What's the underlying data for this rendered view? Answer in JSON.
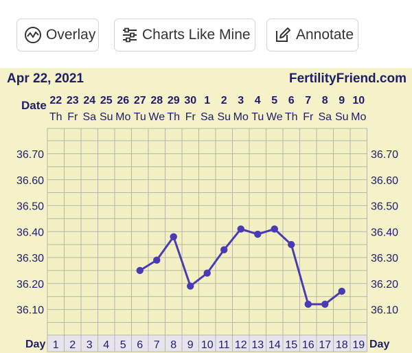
{
  "toolbar": {
    "overlay_label": "Overlay",
    "charts_like_mine_label": "Charts Like Mine",
    "annotate_label": "Annotate"
  },
  "header": {
    "date": "Apr 22, 2021",
    "site": "FertilityFriend.com"
  },
  "colors": {
    "panel": "#f5f1c8",
    "grid": "#b8b6a6",
    "line": "#4a3bb5",
    "text": "#1e1d6a"
  },
  "chart_data": {
    "type": "line",
    "row_labels": {
      "date": "Date",
      "day": "Day"
    },
    "dates": [
      "22",
      "23",
      "24",
      "25",
      "26",
      "27",
      "28",
      "29",
      "30",
      "1",
      "2",
      "3",
      "4",
      "5",
      "6",
      "7",
      "8",
      "9",
      "10"
    ],
    "weekdays": [
      "Th",
      "Fr",
      "Sa",
      "Su",
      "Mo",
      "Tu",
      "We",
      "Th",
      "Fr",
      "Sa",
      "Su",
      "Mo",
      "Tu",
      "We",
      "Th",
      "Fr",
      "Sa",
      "Su",
      "Mo"
    ],
    "cycle_days": [
      1,
      2,
      3,
      4,
      5,
      6,
      7,
      8,
      9,
      10,
      11,
      12,
      13,
      14,
      15,
      16,
      17,
      18,
      19
    ],
    "y_ticks": [
      "36.70",
      "36.60",
      "36.50",
      "36.40",
      "36.30",
      "36.20",
      "36.10"
    ],
    "ylim": [
      36.0,
      36.85
    ],
    "series": [
      {
        "x": [
          6,
          7,
          8,
          9,
          10,
          11,
          12,
          13,
          14,
          15,
          16,
          17,
          18
        ],
        "values": [
          36.25,
          36.29,
          36.38,
          36.19,
          36.24,
          36.33,
          36.41,
          36.39,
          36.41,
          36.35,
          36.12,
          36.12,
          36.17
        ]
      }
    ],
    "grid": true
  }
}
